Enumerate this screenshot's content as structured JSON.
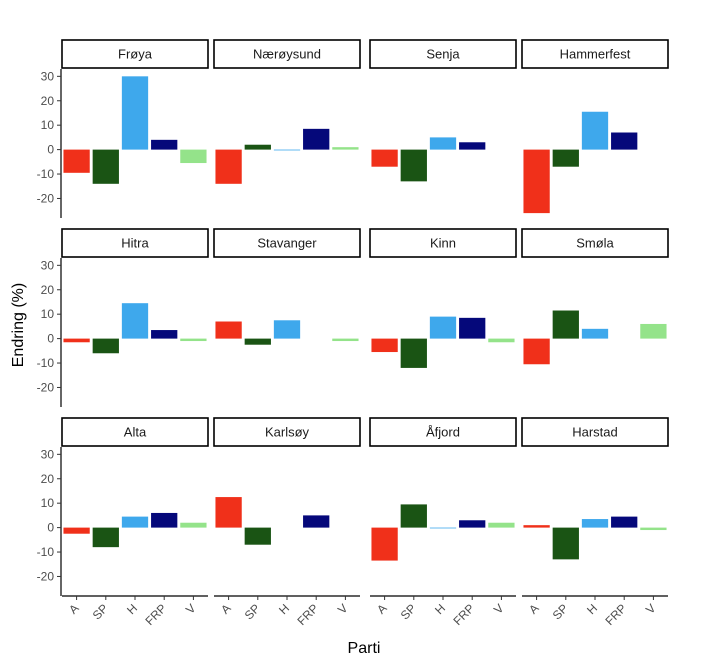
{
  "chart_data": {
    "type": "bar",
    "xlabel": "Parti",
    "ylabel": "Endring (%)",
    "ylim": [
      -28,
      33
    ],
    "yticks": [
      -20,
      -10,
      0,
      10,
      20,
      30
    ],
    "grid": false,
    "legend": "none",
    "categories": [
      "A",
      "SP",
      "H",
      "FRP",
      "V"
    ],
    "colors": {
      "A": "#f0301a",
      "SP": "#1a5414",
      "H": "#3ea8ec",
      "FRP": "#05087a",
      "V": "#94e38a"
    },
    "panels": [
      {
        "name": "Frøya",
        "values": [
          -9.5,
          -14,
          30,
          4,
          -5.5
        ]
      },
      {
        "name": "Nærøysund",
        "values": [
          -14,
          2,
          -0.3,
          8.5,
          1
        ]
      },
      {
        "name": "Senja",
        "values": [
          -7,
          -13,
          5,
          3,
          0
        ]
      },
      {
        "name": "Hammerfest",
        "values": [
          -26,
          -7,
          15.5,
          7,
          0
        ]
      },
      {
        "name": "Hitra",
        "values": [
          -1.5,
          -6,
          14.5,
          3.5,
          -1
        ]
      },
      {
        "name": "Stavanger",
        "values": [
          7,
          -2.5,
          7.5,
          0,
          -1
        ]
      },
      {
        "name": "Kinn",
        "values": [
          -5.5,
          -12,
          9,
          8.5,
          -1.5
        ]
      },
      {
        "name": "Smøla",
        "values": [
          -10.5,
          11.5,
          4,
          0,
          6
        ]
      },
      {
        "name": "Alta",
        "values": [
          -2.5,
          -8,
          4.5,
          6,
          2
        ]
      },
      {
        "name": "Karlsøy",
        "values": [
          12.5,
          -7,
          0,
          5,
          0
        ]
      },
      {
        "name": "Åfjord",
        "values": [
          -13.5,
          9.5,
          -0.3,
          3,
          2
        ]
      },
      {
        "name": "Harstad",
        "values": [
          1,
          -13,
          3.5,
          4.5,
          -1
        ]
      }
    ]
  }
}
